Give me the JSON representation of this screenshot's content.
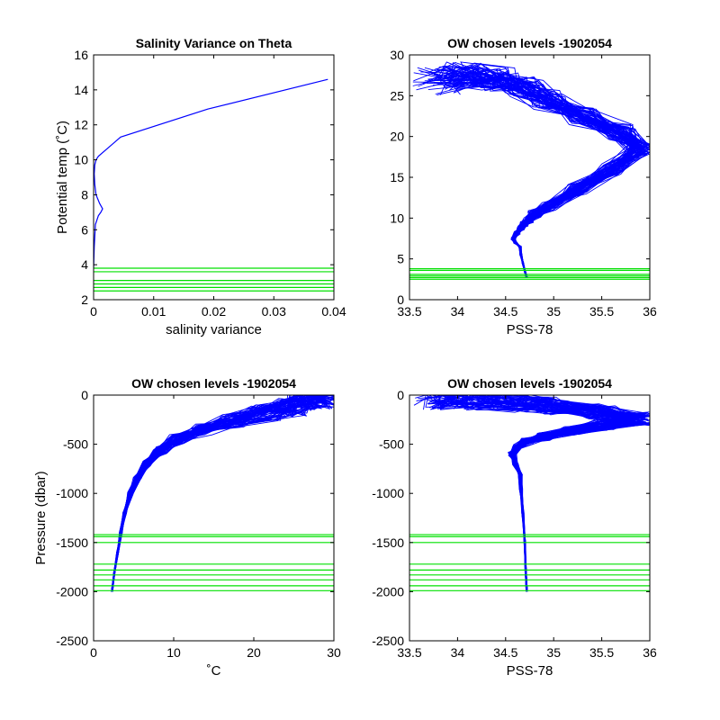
{
  "colors": {
    "data": "#0000ff",
    "levels": "#00e000",
    "axis": "#000000",
    "background": "#ffffff"
  },
  "chart_data": [
    {
      "type": "line",
      "title": "Salinity Variance on Theta",
      "xlabel": "salinity variance",
      "ylabel": "Potential temp (˚C)",
      "xlim": [
        0,
        0.04
      ],
      "ylim": [
        2,
        16
      ],
      "xticks": [
        0,
        0.01,
        0.02,
        0.03,
        0.04
      ],
      "yticks": [
        2,
        4,
        6,
        8,
        10,
        12,
        14,
        16
      ],
      "xtick_labels": [
        "0",
        "0.01",
        "0.02",
        "0.03",
        "0.04"
      ],
      "ytick_labels": [
        "2",
        "4",
        "6",
        "8",
        "10",
        "12",
        "14",
        "16"
      ],
      "series": [
        {
          "x": [
            0.0,
            0.0001,
            0.0003,
            0.0008,
            0.0012,
            0.0015,
            0.001,
            0.0004,
            0.0002,
            0.0001,
            0.0002,
            0.0004,
            0.0008,
            0.0045,
            0.019,
            0.039
          ],
          "y": [
            3.8,
            5.0,
            6.3,
            6.8,
            7.0,
            7.2,
            7.5,
            8.0,
            8.6,
            9.2,
            9.7,
            10.0,
            10.2,
            11.3,
            12.9,
            14.6
          ]
        }
      ],
      "hlines": [
        2.5,
        2.7,
        2.9,
        3.1,
        3.6,
        3.8
      ]
    },
    {
      "type": "line",
      "title": "OW chosen levels -1902054",
      "xlabel": "PSS-78",
      "ylabel": "",
      "xlim": [
        33.5,
        36
      ],
      "ylim": [
        0,
        30
      ],
      "xticks": [
        33.5,
        34,
        34.5,
        35,
        35.5,
        36
      ],
      "yticks": [
        0,
        5,
        10,
        15,
        20,
        25,
        30
      ],
      "xtick_labels": [
        "33.5",
        "34",
        "34.5",
        "35",
        "35.5",
        "36"
      ],
      "ytick_labels": [
        "0",
        "5",
        "10",
        "15",
        "20",
        "25",
        "30"
      ],
      "series": [
        {
          "x": [
            34.72,
            34.7,
            34.68,
            34.66,
            34.65,
            34.6,
            34.58,
            34.62,
            34.66,
            34.7,
            34.75,
            34.8,
            34.95,
            35.25,
            35.6,
            35.9,
            35.7,
            35.3,
            34.95,
            34.7,
            34.4,
            34.1,
            33.8
          ],
          "y": [
            2.7,
            3.5,
            4.5,
            5.5,
            6.5,
            7.0,
            7.5,
            8.2,
            8.8,
            9.3,
            9.8,
            10.5,
            11.5,
            13.5,
            16.0,
            18.5,
            20.5,
            22.5,
            24.5,
            26.0,
            27.0,
            27.5,
            26.8
          ]
        }
      ],
      "hlines": [
        2.5,
        2.7,
        2.9,
        3.1,
        3.6,
        3.8
      ]
    },
    {
      "type": "line",
      "title": "OW chosen levels -1902054",
      "xlabel": "˚C",
      "ylabel": "Pressure (dbar)",
      "xlim": [
        0,
        30
      ],
      "ylim": [
        -2500,
        0
      ],
      "xticks": [
        0,
        10,
        20,
        30
      ],
      "yticks": [
        -2500,
        -2000,
        -1500,
        -1000,
        -500,
        0
      ],
      "xtick_labels": [
        "0",
        "10",
        "20",
        "30"
      ],
      "ytick_labels": [
        "-2500",
        "-2000",
        "-1500",
        "-1000",
        "-500",
        "0"
      ],
      "series": [
        {
          "x": [
            2.3,
            2.6,
            3.0,
            3.4,
            3.9,
            4.6,
            5.5,
            6.7,
            8.3,
            10.5,
            13.5,
            17.5,
            21.5,
            24.5,
            26.5,
            28.0,
            28.8
          ],
          "y": [
            -2000,
            -1800,
            -1600,
            -1400,
            -1200,
            -1000,
            -850,
            -700,
            -560,
            -450,
            -350,
            -260,
            -180,
            -120,
            -60,
            -20,
            0
          ]
        }
      ],
      "hlines": [
        -1420,
        -1440,
        -1500,
        -1720,
        -1780,
        -1830,
        -1880,
        -1940,
        -1990
      ]
    },
    {
      "type": "line",
      "title": "OW chosen levels -1902054",
      "xlabel": "PSS-78",
      "ylabel": "",
      "xlim": [
        33.5,
        36
      ],
      "ylim": [
        -2500,
        0
      ],
      "xticks": [
        33.5,
        34,
        34.5,
        35,
        35.5,
        36
      ],
      "yticks": [
        -2500,
        -2000,
        -1500,
        -1000,
        -500,
        0
      ],
      "xtick_labels": [
        "33.5",
        "34",
        "34.5",
        "35",
        "35.5",
        "36"
      ],
      "ytick_labels": [
        "-2500",
        "-2000",
        "-1500",
        "-1000",
        "-500",
        "0"
      ],
      "series": [
        {
          "x": [
            34.72,
            34.71,
            34.7,
            34.68,
            34.66,
            34.65,
            34.6,
            34.57,
            34.62,
            34.72,
            34.9,
            35.2,
            35.55,
            35.9,
            35.5,
            35.0,
            34.6,
            34.2,
            33.9,
            33.82
          ],
          "y": [
            -2000,
            -1800,
            -1500,
            -1200,
            -950,
            -800,
            -700,
            -600,
            -530,
            -470,
            -420,
            -360,
            -300,
            -240,
            -170,
            -110,
            -70,
            -40,
            -20,
            0
          ]
        }
      ],
      "hlines": [
        -1420,
        -1440,
        -1500,
        -1720,
        -1780,
        -1830,
        -1880,
        -1940,
        -1990
      ]
    }
  ]
}
